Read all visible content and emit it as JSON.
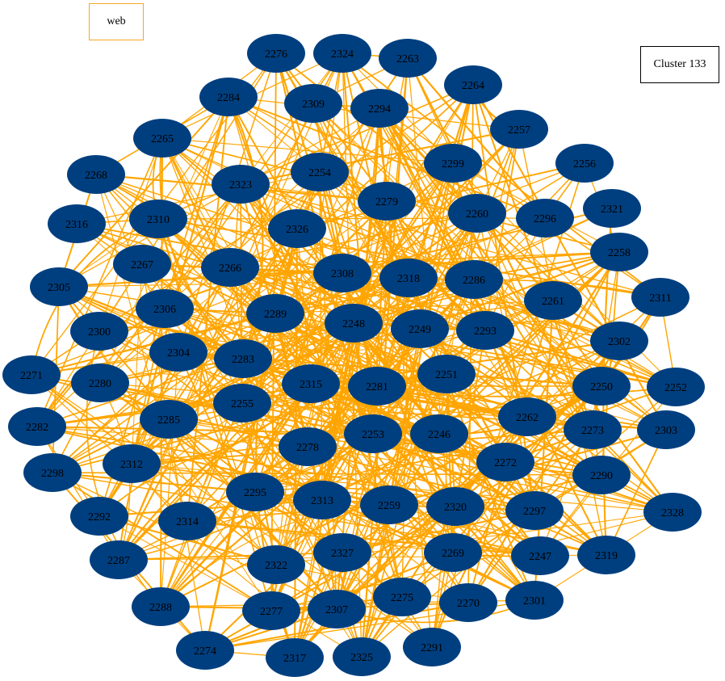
{
  "legend": {
    "label": "web",
    "edge_color": "#FFA500"
  },
  "cluster": {
    "title": "Cluster 133"
  },
  "colors": {
    "node_fill": "#003F7F",
    "edge": "#FFA500",
    "label": "#000000"
  },
  "nodes": [
    "2276",
    "2324",
    "2263",
    "2264",
    "2284",
    "2309",
    "2294",
    "2257",
    "2265",
    "2299",
    "2256",
    "2268",
    "2254",
    "2323",
    "2279",
    "2321",
    "2260",
    "2296",
    "2316",
    "2310",
    "2326",
    "2258",
    "2267",
    "2266",
    "2308",
    "2318",
    "2286",
    "2305",
    "2311",
    "2261",
    "2306",
    "2289",
    "2248",
    "2249",
    "2293",
    "2300",
    "2302",
    "2304",
    "2283",
    "2271",
    "2251",
    "2315",
    "2281",
    "2280",
    "2250",
    "2252",
    "2255",
    "2262",
    "2285",
    "2282",
    "2273",
    "2253",
    "2246",
    "2303",
    "2278",
    "2272",
    "2312",
    "2298",
    "2290",
    "2295",
    "2313",
    "2259",
    "2320",
    "2297",
    "2328",
    "2292",
    "2314",
    "2327",
    "2269",
    "2247",
    "2319",
    "2322",
    "2287",
    "2275",
    "2301",
    "2270",
    "2277",
    "2307",
    "2288",
    "2291",
    "2274",
    "2317",
    "2325"
  ]
}
